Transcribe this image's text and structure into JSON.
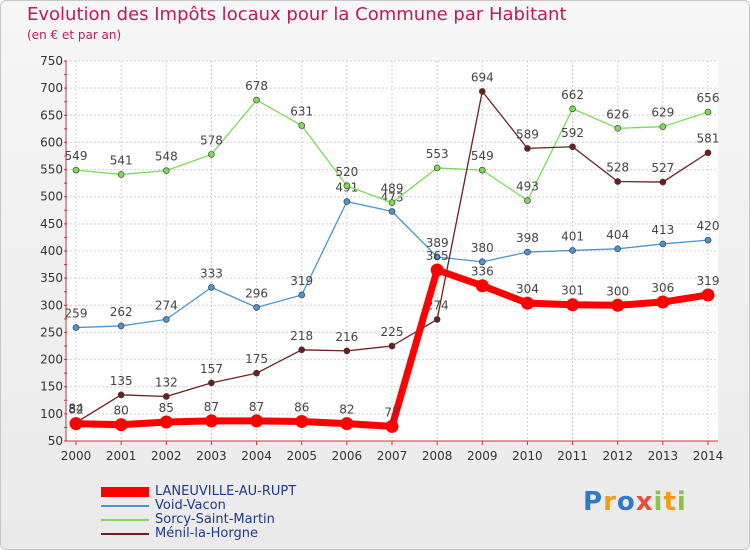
{
  "title": "Evolution des Impôts locaux pour la Commune par Habitant",
  "subtitle": "(en € et par an)",
  "brand": {
    "letters": [
      "P",
      "r",
      "o",
      "x",
      "i",
      "t",
      "i"
    ],
    "colors": [
      "#2e7bc4",
      "#f39c12",
      "#2e7bc4",
      "#e74c3c",
      "#8bc34a",
      "#f39c12",
      "#8bc34a"
    ]
  },
  "chart_data": {
    "type": "line",
    "x": [
      "2000",
      "2001",
      "2002",
      "2003",
      "2004",
      "2005",
      "2006",
      "2007",
      "2008",
      "2009",
      "2010",
      "2011",
      "2012",
      "2013",
      "2014"
    ],
    "ylim": [
      50,
      750
    ],
    "yticks": [
      50,
      100,
      150,
      200,
      250,
      300,
      350,
      400,
      450,
      500,
      550,
      600,
      650,
      700,
      750
    ],
    "grid": true,
    "legend_position": "bottom-left",
    "series": [
      {
        "name": "LANEUVILLE-AU-RUPT",
        "color": "#ff0000",
        "values": [
          82,
          80,
          85,
          87,
          87,
          86,
          82,
          77,
          365,
          336,
          304,
          301,
          300,
          306,
          319
        ]
      },
      {
        "name": "Void-Vacon",
        "color": "#4b94d0",
        "values": [
          259,
          262,
          274,
          333,
          296,
          319,
          491,
          473,
          389,
          380,
          398,
          401,
          404,
          413,
          420
        ]
      },
      {
        "name": "Sorcy-Saint-Martin",
        "color": "#7ed957",
        "values": [
          549,
          541,
          548,
          578,
          678,
          631,
          520,
          489,
          553,
          549,
          493,
          662,
          626,
          629,
          656
        ]
      },
      {
        "name": "Ménil-la-Horgne",
        "color": "#6d1f1f",
        "values": [
          84,
          135,
          132,
          157,
          175,
          218,
          216,
          225,
          274,
          694,
          589,
          592,
          528,
          527,
          581
        ]
      }
    ]
  }
}
